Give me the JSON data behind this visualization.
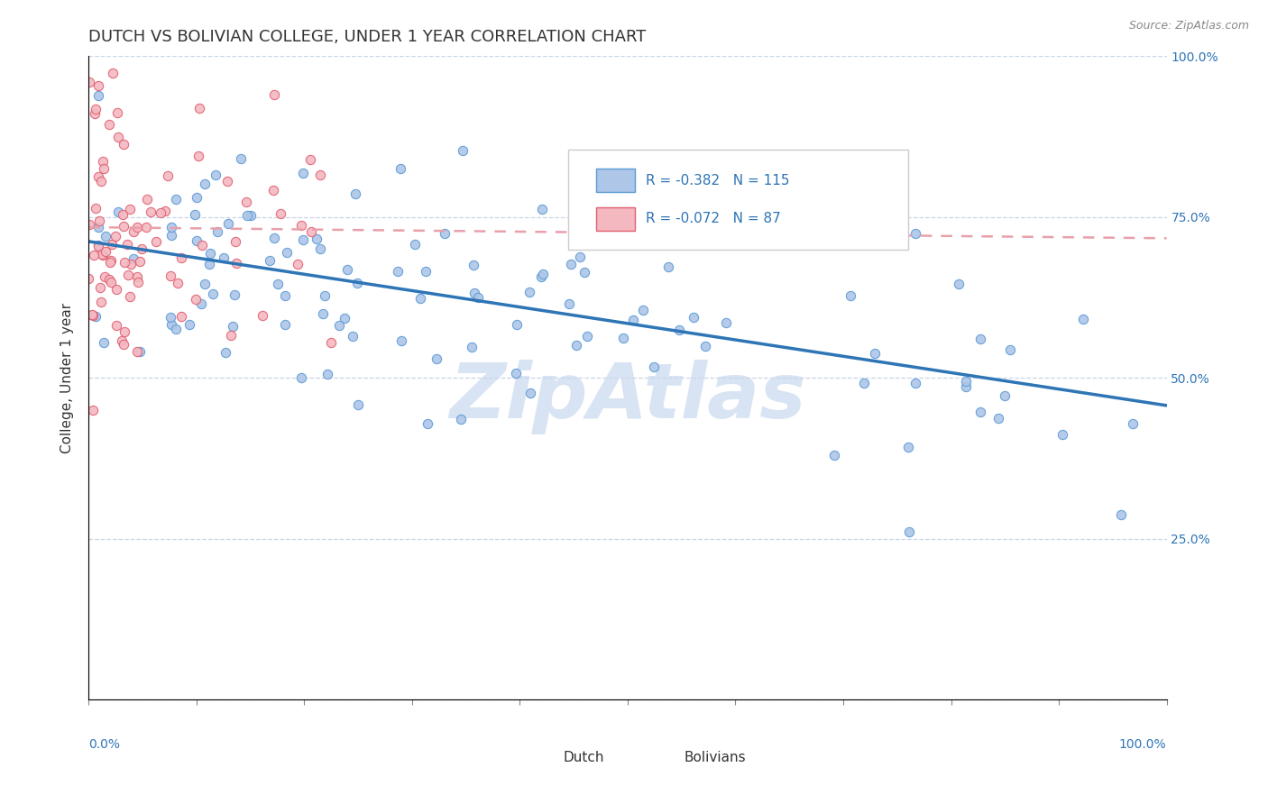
{
  "title": "DUTCH VS BOLIVIAN COLLEGE, UNDER 1 YEAR CORRELATION CHART",
  "source_text": "Source: ZipAtlas.com",
  "ylabel": "College, Under 1 year",
  "dutch_R": -0.382,
  "dutch_N": 115,
  "bolivian_R": -0.072,
  "bolivian_N": 87,
  "dutch_color": "#aec6e8",
  "dutch_edge_color": "#5b9bd5",
  "bolivian_color": "#f4b8c1",
  "bolivian_edge_color": "#e06070",
  "dutch_line_color": "#2e75b6",
  "bolivian_line_color": "#e8a0aa",
  "background_color": "#ffffff",
  "grid_color": "#c8d4e8",
  "title_color": "#333333",
  "legend_color": "#2e75b6",
  "watermark_color": "#c8d8ee",
  "right_tick_color": "#2e75b6",
  "bottom_tick_color": "#2e75b6"
}
